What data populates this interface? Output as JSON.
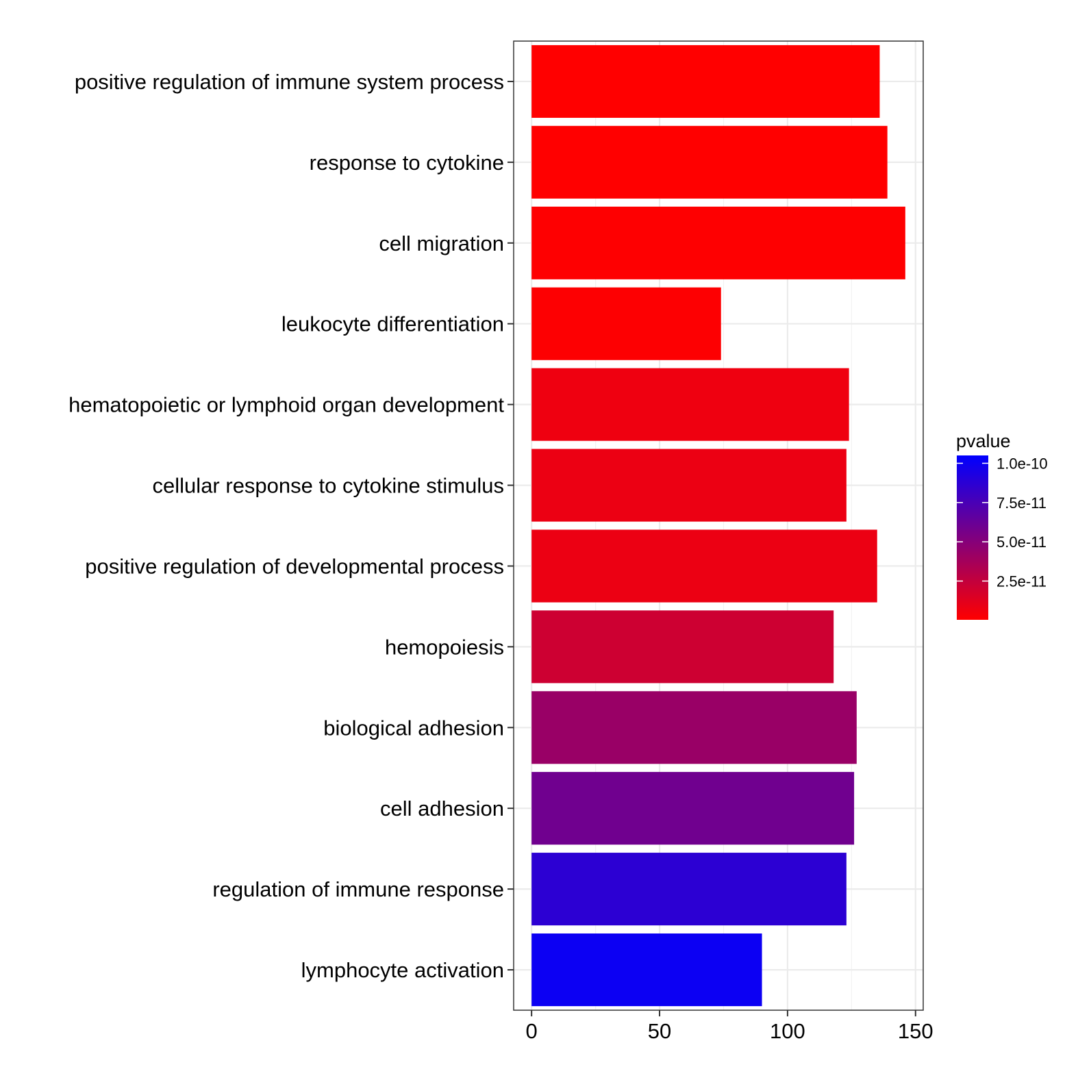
{
  "chart_data": {
    "type": "bar",
    "orientation": "horizontal",
    "categories": [
      "positive regulation of immune system process",
      "response to cytokine",
      "cell migration",
      "leukocyte differentiation",
      "hematopoietic or lymphoid organ development",
      "cellular response to cytokine stimulus",
      "positive regulation of developmental process",
      "hemopoiesis",
      "biological adhesion",
      "cell adhesion",
      "regulation of immune response",
      "lymphocyte activation"
    ],
    "values": [
      136,
      139,
      146,
      74,
      124,
      123,
      135,
      118,
      127,
      126,
      123,
      90
    ],
    "pvalues": [
      3e-13,
      5e-13,
      7e-13,
      1.2e-12,
      7e-12,
      8e-12,
      8e-12,
      2.1e-11,
      4.2e-11,
      5.9e-11,
      8.7e-11,
      1e-10
    ],
    "title": "",
    "xlabel": "",
    "ylabel": "",
    "xlim": [
      -7,
      153
    ],
    "x_ticks": [
      "0",
      "50",
      "100",
      "150"
    ],
    "x_tick_values": [
      0,
      50,
      100,
      150
    ],
    "grid": true,
    "legend": {
      "title": "pvalue",
      "placement": "right",
      "type": "colorbar",
      "range": [
        3e-13,
        1.05e-10
      ],
      "ticks": [
        "1.0e-10",
        "7.5e-11",
        "5.0e-11",
        "2.5e-11"
      ],
      "tick_values": [
        1e-10,
        7.5e-11,
        5e-11,
        2.5e-11
      ],
      "low_color": "#ff0000",
      "high_color": "#0000ff"
    }
  }
}
